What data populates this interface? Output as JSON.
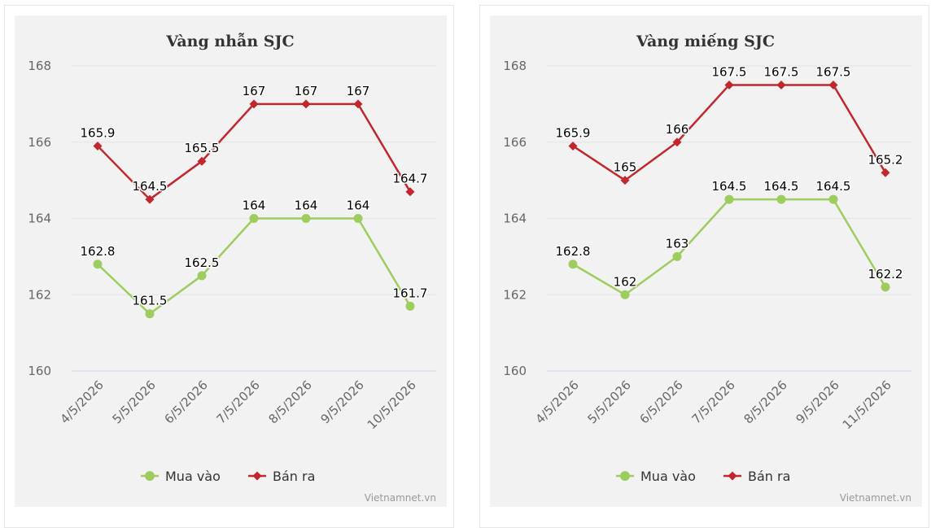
{
  "colors": {
    "buy": "#9dcd5e",
    "sell": "#c0282d",
    "plot_bg": "#f2f2f2",
    "grid": "#e3e3e3",
    "axis": "#ccd6eb"
  },
  "credits": "Vietnamnet.vn",
  "chart_data": [
    {
      "type": "line",
      "title": "Vàng nhẫn SJC",
      "categories": [
        "4/5/2026",
        "5/5/2026",
        "6/5/2026",
        "7/5/2026",
        "8/5/2026",
        "9/5/2026",
        "10/5/2026"
      ],
      "yticks": [
        "160",
        "162",
        "164",
        "166",
        "168"
      ],
      "ylim": [
        160,
        168
      ],
      "grid": true,
      "legend_position": "bottom-center",
      "series": [
        {
          "name": "Mua vào",
          "marker": "circle",
          "values": [
            162.8,
            161.5,
            162.5,
            164,
            164,
            164,
            161.7
          ],
          "labels": [
            "162.8",
            "161.5",
            "162.5",
            "164",
            "164",
            "164",
            "161.7"
          ]
        },
        {
          "name": "Bán ra",
          "marker": "diamond",
          "values": [
            165.9,
            164.5,
            165.5,
            167,
            167,
            167,
            164.7
          ],
          "labels": [
            "165.9",
            "164.5",
            "165.5",
            "167",
            "167",
            "167",
            "164.7"
          ]
        }
      ]
    },
    {
      "type": "line",
      "title": "Vàng miếng SJC",
      "categories": [
        "4/5/2026",
        "5/5/2026",
        "6/5/2026",
        "7/5/2026",
        "8/5/2026",
        "9/5/2026",
        "11/5/2026"
      ],
      "yticks": [
        "160",
        "162",
        "164",
        "166",
        "168"
      ],
      "ylim": [
        160,
        168
      ],
      "grid": true,
      "legend_position": "bottom-center",
      "series": [
        {
          "name": "Mua vào",
          "marker": "circle",
          "values": [
            162.8,
            162,
            163,
            164.5,
            164.5,
            164.5,
            162.2
          ],
          "labels": [
            "162.8",
            "162",
            "163",
            "164.5",
            "164.5",
            "164.5",
            "162.2"
          ]
        },
        {
          "name": "Bán ra",
          "marker": "diamond",
          "values": [
            165.9,
            165,
            166,
            167.5,
            167.5,
            167.5,
            165.2
          ],
          "labels": [
            "165.9",
            "165",
            "166",
            "167.5",
            "167.5",
            "167.5",
            "165.2"
          ]
        }
      ]
    }
  ]
}
